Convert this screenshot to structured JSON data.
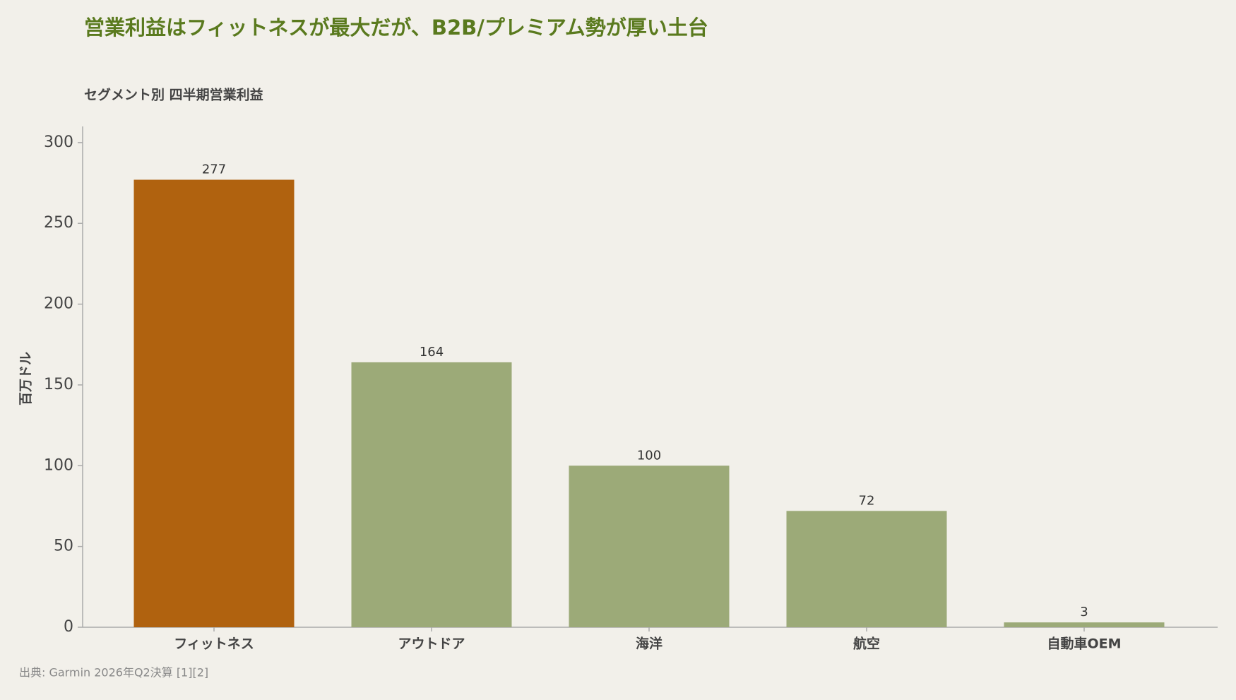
{
  "chart_data": {
    "type": "bar",
    "title": "営業利益はフィットネスが最大だが、B2B/プレミアム勢が厚い土台",
    "subtitle": "セグメント別 四半期営業利益",
    "ylabel": "百万ドル",
    "source": "出典: Garmin 2026年Q2決算 [1][2]",
    "categories": [
      "フィットネス",
      "アウトドア",
      "海洋",
      "航空",
      "自動車OEM"
    ],
    "values": [
      277,
      164,
      100,
      72,
      3
    ],
    "colors": [
      "#b0620f",
      "#9caa78",
      "#9caa78",
      "#9caa78",
      "#9caa78"
    ],
    "ylim": [
      0,
      310
    ],
    "yticks": [
      0,
      50,
      100,
      150,
      200,
      250,
      300
    ],
    "grid": false
  }
}
